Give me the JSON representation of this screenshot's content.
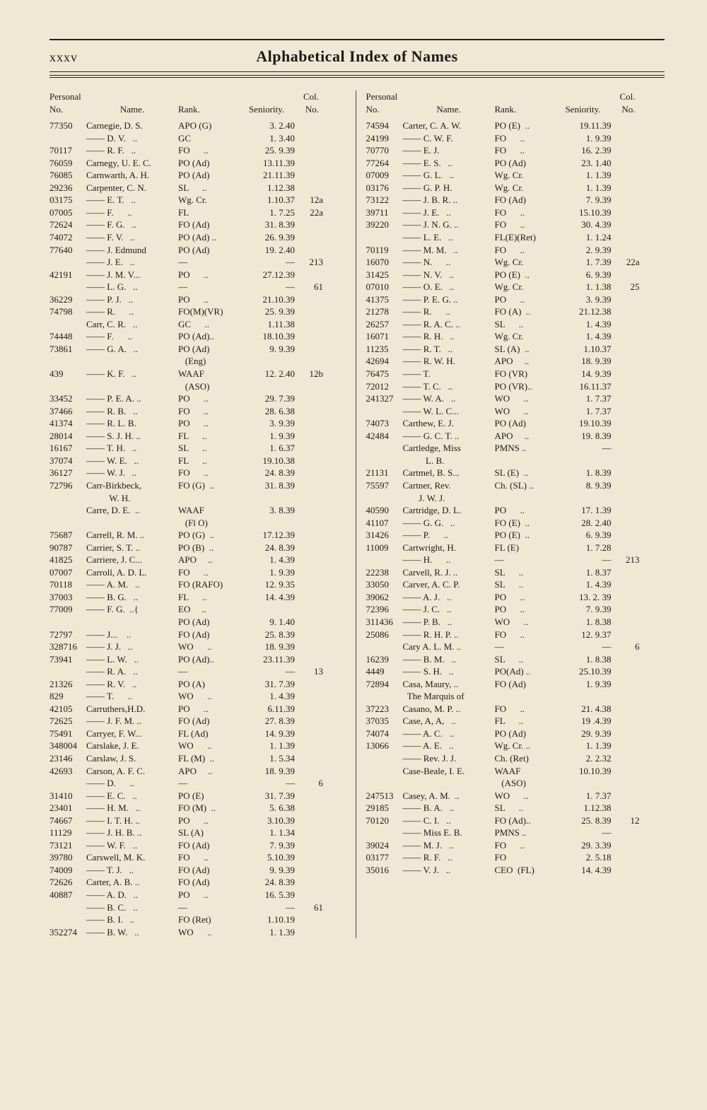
{
  "header": {
    "page_number": "xxxv",
    "title": "Alphabetical Index of Names"
  },
  "column_headers": {
    "personal": "Personal",
    "no": "No.",
    "name": "Name.",
    "rank": "Rank.",
    "seniority": "Seniority.",
    "col": "Col.",
    "col_no": "No."
  },
  "left": [
    {
      "no": "77350",
      "name": "Carnegie, D. S.",
      "rank": "APO (G)",
      "sen": "3. 2.40",
      "col": ""
    },
    {
      "no": "",
      "name": "—— D. V.   ..",
      "rank": "GC",
      "sen": "1. 3.40",
      "col": ""
    },
    {
      "no": "70117",
      "name": "—— R. F.   ..",
      "rank": "FO      ..",
      "sen": "25. 9.39",
      "col": ""
    },
    {
      "no": "76059",
      "name": "Carnegy, U. E. C.",
      "rank": "PO (Ad)",
      "sen": "13.11.39",
      "col": ""
    },
    {
      "no": "76085",
      "name": "Carnwarth, A. H.",
      "rank": "PO (Ad)",
      "sen": "21.11.39",
      "col": ""
    },
    {
      "no": "29236",
      "name": "Carpenter, C. N.",
      "rank": "SL      ..",
      "sen": "1.12.38",
      "col": ""
    },
    {
      "no": "03175",
      "name": "—— E. T.   ..",
      "rank": "Wg. Cr.",
      "sen": "1.10.37",
      "col": "12a"
    },
    {
      "no": "07005",
      "name": "—— F.      ..",
      "rank": "FL",
      "sen": "1. 7.25",
      "col": "22a"
    },
    {
      "no": "72624",
      "name": "—— F. G.   ..",
      "rank": "FO (Ad)",
      "sen": "31. 8.39",
      "col": ""
    },
    {
      "no": "74072",
      "name": "—— F. V.   ..",
      "rank": "PO (Ad) ..",
      "sen": "26. 9.39",
      "col": ""
    },
    {
      "no": "77640",
      "name": "—— J. Edmund",
      "rank": "PO (Ad)",
      "sen": "19. 2.40",
      "col": ""
    },
    {
      "no": "",
      "name": "—— J. E.   ..",
      "rank": "—",
      "sen": "—",
      "col": "213"
    },
    {
      "no": "42191",
      "name": "—— J. M. V...",
      "rank": "PO      ..",
      "sen": "27.12.39",
      "col": ""
    },
    {
      "no": "",
      "name": "—— L. G.   ..",
      "rank": "—",
      "sen": "—",
      "col": "61"
    },
    {
      "no": "36229",
      "name": "—— P. J.   ..",
      "rank": "PO      ..",
      "sen": "21.10.39",
      "col": ""
    },
    {
      "no": "74798",
      "name": "—— R.      ..",
      "rank": "FO(M)(VR)",
      "sen": "25. 9.39",
      "col": ""
    },
    {
      "no": "",
      "name": "Carr, C. R.   ..",
      "rank": "GC      ..",
      "sen": "1.11.38",
      "col": ""
    },
    {
      "no": "74448",
      "name": "—— F.      ..",
      "rank": "PO (Ad)..",
      "sen": "18.10.39",
      "col": ""
    },
    {
      "no": "73861",
      "name": "—— G. A.   ..",
      "rank": "PO (Ad)",
      "sen": "9. 9.39",
      "col": ""
    },
    {
      "no": "",
      "name": "",
      "rank": "   (Eng)",
      "sen": "",
      "col": ""
    },
    {
      "no": "439",
      "name": "—— K. F.   ..",
      "rank": "WAAF",
      "sen": "12. 2.40",
      "col": "12b"
    },
    {
      "no": "",
      "name": "",
      "rank": "   (ASO)",
      "sen": "",
      "col": ""
    },
    {
      "no": "33452",
      "name": "—— P. E. A. ..",
      "rank": "PO      ..",
      "sen": "29. 7.39",
      "col": ""
    },
    {
      "no": "37466",
      "name": "—— R. B.   ..",
      "rank": "FO      ..",
      "sen": "28. 6.38",
      "col": ""
    },
    {
      "no": "41374",
      "name": "—— R. L. B.",
      "rank": "PO      ..",
      "sen": "3. 9.39",
      "col": ""
    },
    {
      "no": "28014",
      "name": "—— S. J. H. ..",
      "rank": "FL      ..",
      "sen": "1. 9.39",
      "col": ""
    },
    {
      "no": "16167",
      "name": "—— T. H.   ..",
      "rank": "SL      ..",
      "sen": "1. 6.37",
      "col": ""
    },
    {
      "no": "37074",
      "name": "—— W. E.   ..",
      "rank": "FL      ..",
      "sen": "19.10.38",
      "col": ""
    },
    {
      "no": "36127",
      "name": "—— W. J.   ..",
      "rank": "FO      ..",
      "sen": "24. 8.39",
      "col": ""
    },
    {
      "no": "72796",
      "name": "Carr-Birkbeck,",
      "rank": "FO (G)  ..",
      "sen": "31. 8.39",
      "col": ""
    },
    {
      "no": "",
      "name": "          W. H.",
      "rank": "",
      "sen": "",
      "col": ""
    },
    {
      "no": "",
      "name": "Carre, D. E.  ..",
      "rank": "WAAF",
      "sen": "3. 8.39",
      "col": ""
    },
    {
      "no": "",
      "name": "",
      "rank": "   (Fl O)",
      "sen": "",
      "col": ""
    },
    {
      "no": "75687",
      "name": "Carrell, R. M. ..",
      "rank": "PO (G)  ..",
      "sen": "17.12.39",
      "col": ""
    },
    {
      "no": "90787",
      "name": "Carrier, S. T. ..",
      "rank": "PO (B)  ..",
      "sen": "24. 8.39",
      "col": ""
    },
    {
      "no": "41825",
      "name": "Carriere, J. C...",
      "rank": "APO     ..",
      "sen": "1. 4.39",
      "col": ""
    },
    {
      "no": "07007",
      "name": "Carroll, A. D. L.",
      "rank": "FO      ..",
      "sen": "1. 9.39",
      "col": ""
    },
    {
      "no": "70118",
      "name": "—— A. M.   ..",
      "rank": "FO (RAFO)",
      "sen": "12. 9.35",
      "col": ""
    },
    {
      "no": "37003",
      "name": "—— B. G.   ..",
      "rank": "FL      ..",
      "sen": "14. 4.39",
      "col": ""
    },
    {
      "no": "77009",
      "name": "—— F. G.  ..{",
      "rank": "EO     ..",
      "sen": "",
      "col": ""
    },
    {
      "no": "",
      "name": "",
      "rank": "PO (Ad)",
      "sen": "9. 1.40",
      "col": ""
    },
    {
      "no": "72797",
      "name": "—— J...    ..",
      "rank": "FO (Ad)",
      "sen": "25. 8.39",
      "col": ""
    },
    {
      "no": "328716",
      "name": "—— J. J.   ..",
      "rank": "WO      ..",
      "sen": "18. 9.39",
      "col": ""
    },
    {
      "no": "73941",
      "name": "—— L. W.   ..",
      "rank": "PO (Ad)..",
      "sen": "23.11.39",
      "col": ""
    },
    {
      "no": "",
      "name": "—— R. A.   ..",
      "rank": "—",
      "sen": "—",
      "col": "13"
    },
    {
      "no": "21326",
      "name": "—— R. V.   ..",
      "rank": "PO (A)",
      "sen": "31. 7.39",
      "col": ""
    },
    {
      "no": "829",
      "name": "—— T.      ..",
      "rank": "WO      ..",
      "sen": "1. 4.39",
      "col": ""
    },
    {
      "no": "42105",
      "name": "Carruthers,H.D.",
      "rank": "PO      ..",
      "sen": "6.11.39",
      "col": ""
    },
    {
      "no": "72625",
      "name": "—— J. F. M. ..",
      "rank": "FO (Ad)",
      "sen": "27. 8.39",
      "col": ""
    },
    {
      "no": "75491",
      "name": "Carryer, F. W...",
      "rank": "FL (Ad)",
      "sen": "14. 9.39",
      "col": ""
    },
    {
      "no": "348004",
      "name": "Carslake, J. E.",
      "rank": "WO      ..",
      "sen": "1. 1.39",
      "col": ""
    },
    {
      "no": "23146",
      "name": "Carslaw, J. S.",
      "rank": "FL (M)  ..",
      "sen": "1. 5.34",
      "col": ""
    },
    {
      "no": "42693",
      "name": "Carson, A. F. C.",
      "rank": "APO     ..",
      "sen": "18. 9.39",
      "col": ""
    },
    {
      "no": "",
      "name": "—— D.      ..",
      "rank": "—",
      "sen": "—",
      "col": "6"
    },
    {
      "no": "31410",
      "name": "—— E. C.   ..",
      "rank": "PO (E)",
      "sen": "31. 7.39",
      "col": ""
    },
    {
      "no": "23401",
      "name": "—— H. M.   ..",
      "rank": "FO (M)  ..",
      "sen": "5. 6.38",
      "col": ""
    },
    {
      "no": "74667",
      "name": "—— I. T. H. ..",
      "rank": "PO      ..",
      "sen": "3.10.39",
      "col": ""
    },
    {
      "no": "11129",
      "name": "—— J. H. B. ..",
      "rank": "SL (A)",
      "sen": "1. 1.34",
      "col": ""
    },
    {
      "no": "73121",
      "name": "—— W. F.   ..",
      "rank": "FO (Ad)",
      "sen": "7. 9.39",
      "col": ""
    },
    {
      "no": "39780",
      "name": "Carswell, M. K.",
      "rank": "FO      ..",
      "sen": "5.10.39",
      "col": ""
    },
    {
      "no": "74009",
      "name": "—— T. J.   ..",
      "rank": "FO (Ad)",
      "sen": "9. 9.39",
      "col": ""
    },
    {
      "no": "72626",
      "name": "Carter, A. B. ..",
      "rank": "FO (Ad)",
      "sen": "24. 8.39",
      "col": ""
    },
    {
      "no": "40887",
      "name": "—— A. D.   ..",
      "rank": "PO      ..",
      "sen": "16. 5.39",
      "col": ""
    },
    {
      "no": "",
      "name": "—— B. C.   ..",
      "rank": "—",
      "sen": "—",
      "col": "61"
    },
    {
      "no": "",
      "name": "—— B. I.   ..",
      "rank": "FO (Ret)",
      "sen": "1.10.19",
      "col": ""
    },
    {
      "no": "352274",
      "name": "—— B. W.   ..",
      "rank": "WO      ..",
      "sen": "1. 1.39",
      "col": ""
    }
  ],
  "right": [
    {
      "no": "74594",
      "name": "Carter, C. A. W.",
      "rank": "PO (E)  ..",
      "sen": "19.11.39",
      "col": ""
    },
    {
      "no": "24199",
      "name": "—— C. W. F.",
      "rank": "FO      ..",
      "sen": "1. 9.39",
      "col": ""
    },
    {
      "no": "70770",
      "name": "—— E. J.",
      "rank": "FO      ..",
      "sen": "16. 2.39",
      "col": ""
    },
    {
      "no": "77264",
      "name": "—— E. S.   ..",
      "rank": "PO (Ad)",
      "sen": "23. 1.40",
      "col": ""
    },
    {
      "no": "07009",
      "name": "—— G. L.   ..",
      "rank": "Wg. Cr.",
      "sen": "1. 1.39",
      "col": ""
    },
    {
      "no": "03176",
      "name": "—— G. P. H.",
      "rank": "Wg. Cr.",
      "sen": "1. 1.39",
      "col": ""
    },
    {
      "no": "73122",
      "name": "—— J. B. R. ..",
      "rank": "FO (Ad)",
      "sen": "7. 9.39",
      "col": ""
    },
    {
      "no": "39711",
      "name": "—— J. E.   ..",
      "rank": "FO      ..",
      "sen": "15.10.39",
      "col": ""
    },
    {
      "no": "39220",
      "name": "—— J. N. G. ..",
      "rank": "FO      ..",
      "sen": "30. 4.39",
      "col": ""
    },
    {
      "no": "",
      "name": "—— L. E.   ..",
      "rank": "FL(E)(Ret)",
      "sen": "1. 1.24",
      "col": ""
    },
    {
      "no": "70119",
      "name": "—— M. M.   ..",
      "rank": "FO      ..",
      "sen": "2. 9.39",
      "col": ""
    },
    {
      "no": "16070",
      "name": "—— N.      ..",
      "rank": "Wg. Cr.",
      "sen": "1. 7.39",
      "col": "22a"
    },
    {
      "no": "31425",
      "name": "—— N. V.   ..",
      "rank": "PO (E)  ..",
      "sen": "6. 9.39",
      "col": ""
    },
    {
      "no": "07010",
      "name": "—— O. E.   ..",
      "rank": "Wg. Cr.",
      "sen": "1. 1.38",
      "col": "25"
    },
    {
      "no": "41375",
      "name": "—— P. E. G. ..",
      "rank": "PO      ..",
      "sen": "3. 9.39",
      "col": ""
    },
    {
      "no": "21278",
      "name": "—— R.      ..",
      "rank": "FO (A)  ..",
      "sen": "21.12.38",
      "col": ""
    },
    {
      "no": "26257",
      "name": "—— R. A. C. ..",
      "rank": "SL      ..",
      "sen": "1. 4.39",
      "col": ""
    },
    {
      "no": "16071",
      "name": "—— R. H.   ..",
      "rank": "Wg. Cr.",
      "sen": "1. 4.39",
      "col": ""
    },
    {
      "no": "11235",
      "name": "—— R. T.   ..",
      "rank": "SL (A)  ..",
      "sen": "1.10.37",
      "col": ""
    },
    {
      "no": "42694",
      "name": "—— R. W. H.",
      "rank": "APO     ..",
      "sen": "18. 9.39",
      "col": ""
    },
    {
      "no": "76475",
      "name": "—— T.",
      "rank": "FO (VR)",
      "sen": "14. 9.39",
      "col": ""
    },
    {
      "no": "72012",
      "name": "—— T. C.   ..",
      "rank": "PO (VR)..",
      "sen": "16.11.37",
      "col": ""
    },
    {
      "no": "241327",
      "name": "—— W. A.   ..",
      "rank": "WO      ..",
      "sen": "1. 7.37",
      "col": ""
    },
    {
      "no": "",
      "name": "—— W. L. C...",
      "rank": "WO      ..",
      "sen": "1. 7.37",
      "col": ""
    },
    {
      "no": "74073",
      "name": "Carthew, E. J.",
      "rank": "PO (Ad)",
      "sen": "19.10.39",
      "col": ""
    },
    {
      "no": "42484",
      "name": "—— G. C. T. ..",
      "rank": "APO     ..",
      "sen": "19. 8.39",
      "col": ""
    },
    {
      "no": "",
      "name": "Cartledge, Miss",
      "rank": "PMNS ..",
      "sen": "—",
      "col": ""
    },
    {
      "no": "",
      "name": "          L. B.",
      "rank": "",
      "sen": "",
      "col": ""
    },
    {
      "no": "21131",
      "name": "Cartmel, B. S...",
      "rank": "SL (E)  ..",
      "sen": "1. 8.39",
      "col": ""
    },
    {
      "no": "75597",
      "name": "Cartner, Rev.",
      "rank": "Ch. (SL) ..",
      "sen": "8. 9.39",
      "col": ""
    },
    {
      "no": "",
      "name": "       J. W. J.",
      "rank": "",
      "sen": "",
      "col": ""
    },
    {
      "no": "40590",
      "name": "Cartridge, D. L.",
      "rank": "PO      ..",
      "sen": "17. 1.39",
      "col": ""
    },
    {
      "no": "41107",
      "name": "—— G. G.   ..",
      "rank": "FO (E)  ..",
      "sen": "28. 2.40",
      "col": ""
    },
    {
      "no": "31426",
      "name": "—— P.      ..",
      "rank": "PO (E)  ..",
      "sen": "6. 9.39",
      "col": ""
    },
    {
      "no": "11009",
      "name": "Cartwright, H.",
      "rank": "FL (E)",
      "sen": "1. 7.28",
      "col": ""
    },
    {
      "no": "",
      "name": "—— H.      ..",
      "rank": "—",
      "sen": "—",
      "col": "213"
    },
    {
      "no": "22238",
      "name": "Carvell, R. J. ..",
      "rank": "SL      ..",
      "sen": "1. 8.37",
      "col": ""
    },
    {
      "no": "33050",
      "name": "Carver, A. C. P.",
      "rank": "SL      ..",
      "sen": "1. 4.39",
      "col": ""
    },
    {
      "no": "39062",
      "name": "—— A. J.   ..",
      "rank": "PO      ..",
      "sen": "13. 2. 39",
      "col": ""
    },
    {
      "no": "72396",
      "name": "—— J. C.   ..",
      "rank": "PO      ..",
      "sen": "7. 9.39",
      "col": ""
    },
    {
      "no": "311436",
      "name": "—— P. B.   ..",
      "rank": "WO      ..",
      "sen": "1. 8.38",
      "col": ""
    },
    {
      "no": "25086",
      "name": "—— R. H. P. ..",
      "rank": "FO      ..",
      "sen": "12. 9.37",
      "col": ""
    },
    {
      "no": "",
      "name": "Cary A. L. M. ..",
      "rank": "—",
      "sen": "—",
      "col": "6"
    },
    {
      "no": "16239",
      "name": "—— B. M.   ..",
      "rank": "SL      ..",
      "sen": "1. 8.38",
      "col": ""
    },
    {
      "no": "4449",
      "name": "—— S. H.   ..",
      "rank": "PO(Ad) ..",
      "sen": "25.10.39",
      "col": ""
    },
    {
      "no": "72894",
      "name": "Casa, Maury, ..",
      "rank": "FO (Ad)",
      "sen": "1. 9.39",
      "col": ""
    },
    {
      "no": "",
      "name": "  The Marquis of",
      "rank": "",
      "sen": "",
      "col": ""
    },
    {
      "no": "37223",
      "name": "Casano, M. P. ..",
      "rank": "FO      ..",
      "sen": "21. 4.38",
      "col": ""
    },
    {
      "no": "37035",
      "name": "Case, A, A,   ..",
      "rank": "FL      ..",
      "sen": "19 .4.39",
      "col": ""
    },
    {
      "no": "74074",
      "name": "—— A. C.   ..",
      "rank": "PO (Ad)",
      "sen": "29. 9.39",
      "col": ""
    },
    {
      "no": "13066",
      "name": "—— A. E.   ..",
      "rank": "Wg. Cr. ..",
      "sen": "1. 1.39",
      "col": ""
    },
    {
      "no": "",
      "name": "—— Rev. J. J.",
      "rank": "Ch. (Ret)",
      "sen": "2. 2.32",
      "col": ""
    },
    {
      "no": "",
      "name": "Case-Beale, I. E.",
      "rank": "WAAF",
      "sen": "10.10.39",
      "col": ""
    },
    {
      "no": "",
      "name": "",
      "rank": "   (ASO)",
      "sen": "",
      "col": ""
    },
    {
      "no": "247513",
      "name": "Casey, A. M.  ..",
      "rank": "WO      ..",
      "sen": "1. 7.37",
      "col": ""
    },
    {
      "no": "29185",
      "name": "—— B. A.   ..",
      "rank": "SL      ..",
      "sen": "1.12.38",
      "col": ""
    },
    {
      "no": "70120",
      "name": "—— C. I.   ..",
      "rank": "FO (Ad)..",
      "sen": "25. 8.39",
      "col": "12"
    },
    {
      "no": "",
      "name": "—— Miss E. B.",
      "rank": "PMNS ..",
      "sen": "—",
      "col": ""
    },
    {
      "no": "39024",
      "name": "—— M. J.   ..",
      "rank": "FO      ..",
      "sen": "29. 3.39",
      "col": ""
    },
    {
      "no": "03177",
      "name": "—— R. F.   ..",
      "rank": "FO",
      "sen": "2. 5.18",
      "col": ""
    },
    {
      "no": "35016",
      "name": "—— V. J.   ..",
      "rank": "CEO  (FL)",
      "sen": "14. 4.39",
      "col": ""
    }
  ]
}
